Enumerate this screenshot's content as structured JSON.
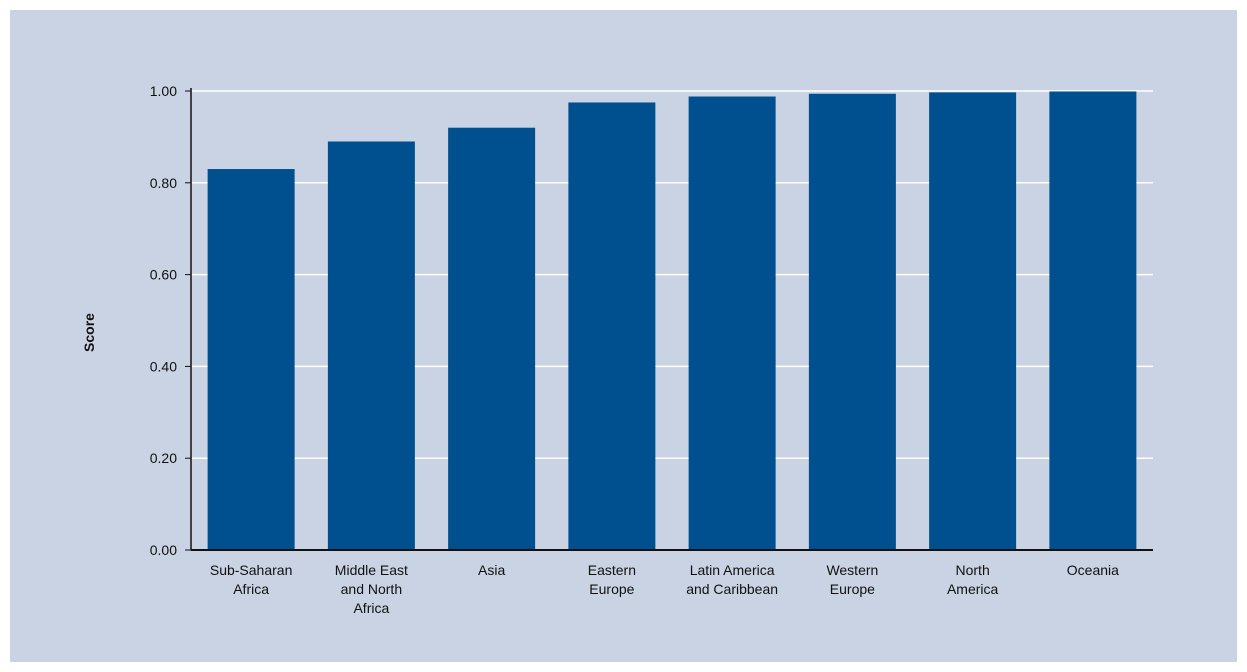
{
  "chart_data": {
    "type": "bar",
    "title": "",
    "xlabel": "",
    "ylabel": "Score",
    "ylim": [
      0,
      1
    ],
    "yticks": [
      "0.00",
      "0.20",
      "0.40",
      "0.60",
      "0.80",
      "1.00"
    ],
    "grid": true,
    "categories": [
      [
        "Sub-Saharan",
        "Africa"
      ],
      [
        "Middle East",
        "and North",
        "Africa"
      ],
      [
        "Asia"
      ],
      [
        "Eastern",
        "Europe"
      ],
      [
        "Latin America",
        "and Caribbean"
      ],
      [
        "Western",
        "Europe"
      ],
      [
        "North",
        "America"
      ],
      [
        "Oceania"
      ]
    ],
    "values": [
      0.83,
      0.89,
      0.92,
      0.975,
      0.988,
      0.994,
      0.997,
      0.999
    ],
    "colors": {
      "bar": "#00508f",
      "background": "#c9d3e3",
      "grid": "#ffffff",
      "axis": "#111111"
    }
  }
}
